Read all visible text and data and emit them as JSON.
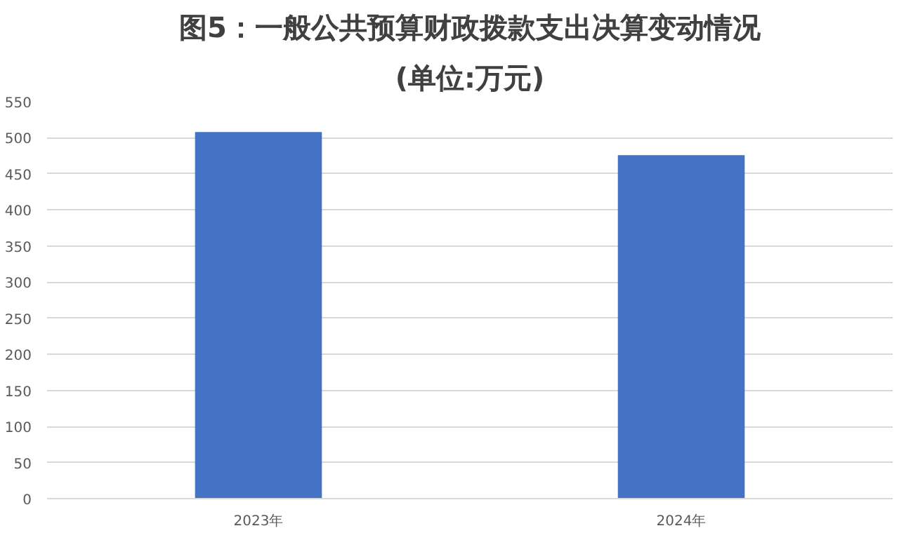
{
  "chart_data": {
    "type": "bar",
    "title": "图5：一般公共预算财政拨款支出决算变动情况",
    "subtitle": "(单位:万元)",
    "categories": [
      "2023年",
      "2024年"
    ],
    "values": [
      508,
      476
    ],
    "color": "#4472c4",
    "ylim": [
      0,
      550
    ],
    "yticks": [
      0,
      50,
      100,
      150,
      200,
      250,
      300,
      350,
      400,
      450,
      500,
      550
    ],
    "grid": "y"
  }
}
